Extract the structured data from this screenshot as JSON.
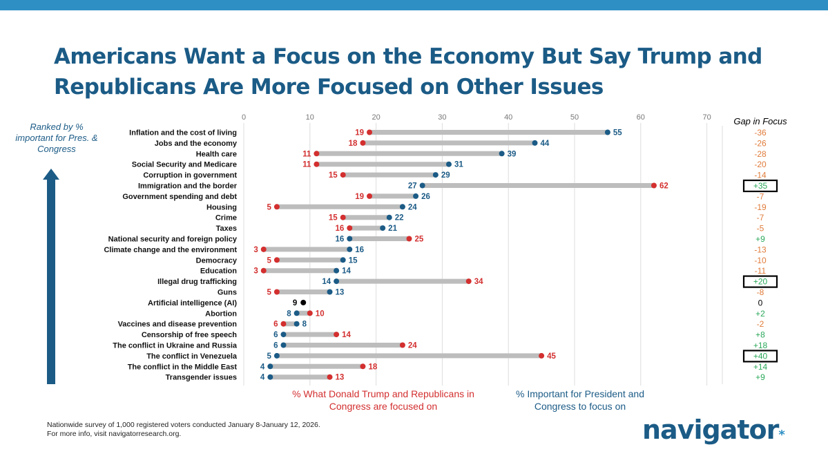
{
  "title": "Americans Want a Focus on the Economy But Say Trump and Republicans Are More Focused on Other Issues",
  "ranked_note": "Ranked by % important for Pres. & Congress",
  "gap_header": "Gap in Focus",
  "legend": {
    "focused_label": "% What Donald Trump and Republicans in Congress are focused on",
    "important_label": "% Important for President and Congress to focus on"
  },
  "footnote": {
    "line1": "Nationwide survey of 1,000 registered voters conducted January 8-January 12, 2026.",
    "line2": "For more info, visit navigatorresearch.org."
  },
  "brand": {
    "name": "navigator",
    "mark": "*"
  },
  "colors": {
    "important": "#1b5b86",
    "focused": "#d32f2f",
    "connector": "#bdbdbd",
    "gap_negative": "#e07b39",
    "gap_positive": "#2aa85a",
    "title": "#1b5b86",
    "grid": "#dcdcdc"
  },
  "chart_data": {
    "type": "dumbbell",
    "title": "Americans Want a Focus on the Economy But Say Trump and Republicans Are More Focused on Other Issues",
    "xlim": [
      0,
      70
    ],
    "xticks": [
      0,
      10,
      20,
      30,
      40,
      50,
      60,
      70
    ],
    "series": [
      {
        "name": "% Important for President and Congress to focus on",
        "key": "important"
      },
      {
        "name": "% What Donald Trump and Republicans in Congress are focused on",
        "key": "focused"
      }
    ],
    "rows": [
      {
        "label": "Inflation and the cost of living",
        "important": 55,
        "focused": 19,
        "gap": "-36",
        "boxed": false
      },
      {
        "label": "Jobs and the economy",
        "important": 44,
        "focused": 18,
        "gap": "-26",
        "boxed": false
      },
      {
        "label": "Health care",
        "important": 39,
        "focused": 11,
        "gap": "-28",
        "boxed": false
      },
      {
        "label": "Social Security and Medicare",
        "important": 31,
        "focused": 11,
        "gap": "-20",
        "boxed": false
      },
      {
        "label": "Corruption in government",
        "important": 29,
        "focused": 15,
        "gap": "-14",
        "boxed": false
      },
      {
        "label": "Immigration and the border",
        "important": 27,
        "focused": 62,
        "gap": "+35",
        "boxed": true
      },
      {
        "label": "Government spending and debt",
        "important": 26,
        "focused": 19,
        "gap": "-7",
        "boxed": false
      },
      {
        "label": "Housing",
        "important": 24,
        "focused": 5,
        "gap": "-19",
        "boxed": false
      },
      {
        "label": "Crime",
        "important": 22,
        "focused": 15,
        "gap": "-7",
        "boxed": false
      },
      {
        "label": "Taxes",
        "important": 21,
        "focused": 16,
        "gap": "-5",
        "boxed": false
      },
      {
        "label": "National security and foreign policy",
        "important": 16,
        "focused": 25,
        "gap": "+9",
        "boxed": false
      },
      {
        "label": "Climate change and the environment",
        "important": 16,
        "focused": 3,
        "gap": "-13",
        "boxed": false
      },
      {
        "label": "Democracy",
        "important": 15,
        "focused": 5,
        "gap": "-10",
        "boxed": false
      },
      {
        "label": "Education",
        "important": 14,
        "focused": 3,
        "gap": "-11",
        "boxed": false
      },
      {
        "label": "Illegal drug trafficking",
        "important": 14,
        "focused": 34,
        "gap": "+20",
        "boxed": true
      },
      {
        "label": "Guns",
        "important": 13,
        "focused": 5,
        "gap": "-8",
        "boxed": false
      },
      {
        "label": "Artificial intelligence (AI)",
        "important": 9,
        "focused": 9,
        "gap": "0",
        "boxed": false
      },
      {
        "label": "Abortion",
        "important": 8,
        "focused": 10,
        "gap": "+2",
        "boxed": false
      },
      {
        "label": "Vaccines and disease prevention",
        "important": 8,
        "focused": 6,
        "gap": "-2",
        "boxed": false
      },
      {
        "label": "Censorship of free speech",
        "important": 6,
        "focused": 14,
        "gap": "+8",
        "boxed": false
      },
      {
        "label": "The conflict in Ukraine and Russia",
        "important": 6,
        "focused": 24,
        "gap": "+18",
        "boxed": false
      },
      {
        "label": "The conflict in Venezuela",
        "important": 5,
        "focused": 45,
        "gap": "+40",
        "boxed": true
      },
      {
        "label": "The conflict in the Middle East",
        "important": 4,
        "focused": 18,
        "gap": "+14",
        "boxed": false
      },
      {
        "label": "Transgender issues",
        "important": 4,
        "focused": 13,
        "gap": "+9",
        "boxed": false
      }
    ]
  }
}
